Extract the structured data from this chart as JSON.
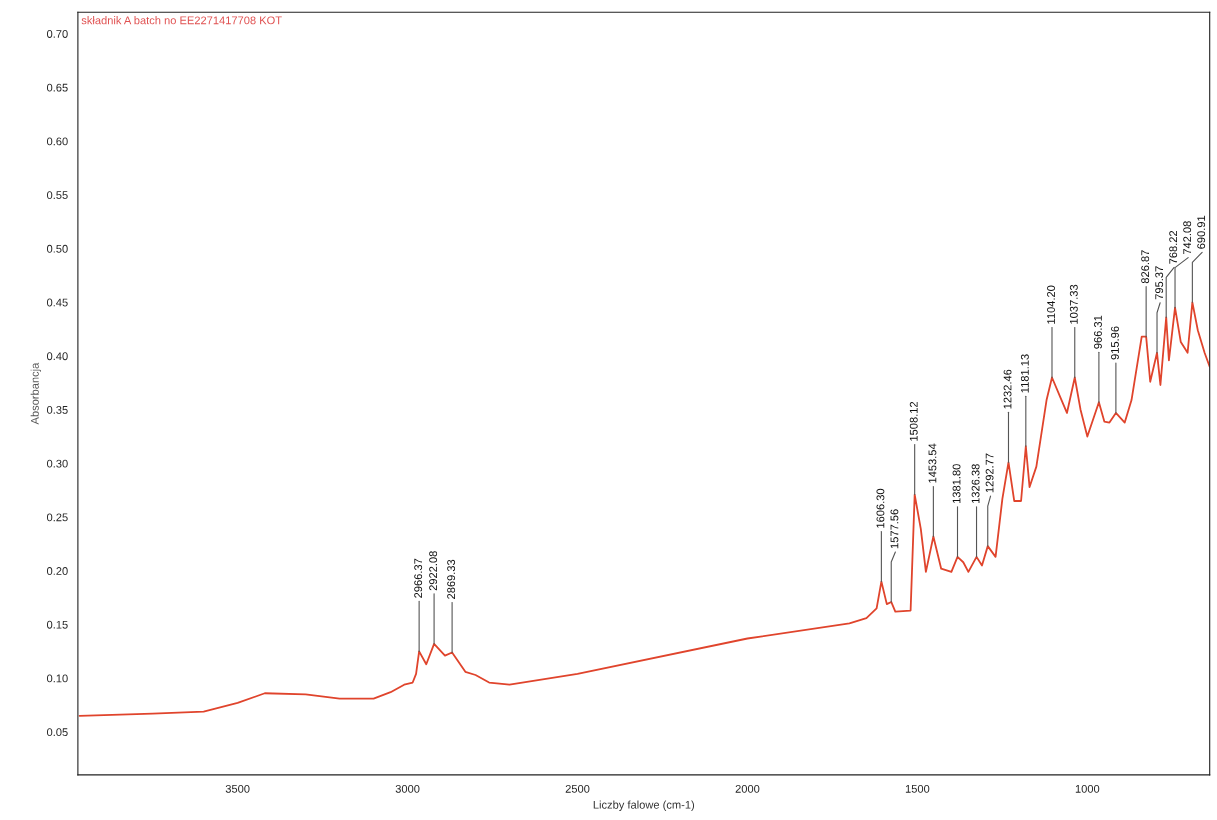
{
  "chart_data": {
    "type": "line",
    "title": "składnik A batch no EE2271417708 KOT",
    "xlabel": "Liczby falowe (cm-1)",
    "ylabel": "Absorbancja",
    "xlim": [
      3970,
      640
    ],
    "ylim": [
      0.01,
      0.72
    ],
    "xticks": [
      3500,
      3000,
      2500,
      2000,
      1500,
      1000
    ],
    "yticks": [
      {
        "value": 0.05,
        "label": "0.05"
      },
      {
        "value": 0.1,
        "label": "0.10"
      },
      {
        "value": 0.15,
        "label": "0.15"
      },
      {
        "value": 0.2,
        "label": "0.20"
      },
      {
        "value": 0.25,
        "label": "0.25"
      },
      {
        "value": 0.3,
        "label": "0.30"
      },
      {
        "value": 0.35,
        "label": "0.35"
      },
      {
        "value": 0.4,
        "label": "0.40"
      },
      {
        "value": 0.45,
        "label": "0.45"
      },
      {
        "value": 0.5,
        "label": "0.50"
      },
      {
        "value": 0.55,
        "label": "0.55"
      },
      {
        "value": 0.6,
        "label": "0.60"
      },
      {
        "value": 0.65,
        "label": "0.65"
      },
      {
        "value": 0.7,
        "label": "0.70"
      }
    ],
    "series": [
      {
        "color": "#e0442c",
        "x": [
          3965,
          3750,
          3600,
          3500,
          3420,
          3300,
          3200,
          3100,
          3050,
          3010,
          2985,
          2975,
          2966,
          2945,
          2922,
          2890,
          2869,
          2830,
          2800,
          2760,
          2700,
          2500,
          2000,
          1700,
          1650,
          1620,
          1606,
          1590,
          1577,
          1565,
          1520,
          1508,
          1490,
          1475,
          1453,
          1430,
          1400,
          1382,
          1365,
          1350,
          1326,
          1310,
          1293,
          1270,
          1250,
          1232,
          1215,
          1195,
          1181,
          1170,
          1150,
          1120,
          1104,
          1080,
          1060,
          1037,
          1020,
          1000,
          966,
          950,
          935,
          916,
          890,
          870,
          840,
          827,
          815,
          795,
          785,
          768,
          760,
          742,
          725,
          705,
          691,
          675,
          655,
          640
        ],
        "values": [
          0.065,
          0.067,
          0.069,
          0.077,
          0.086,
          0.085,
          0.081,
          0.081,
          0.087,
          0.094,
          0.096,
          0.104,
          0.125,
          0.113,
          0.132,
          0.121,
          0.124,
          0.106,
          0.103,
          0.096,
          0.094,
          0.104,
          0.137,
          0.151,
          0.156,
          0.165,
          0.19,
          0.169,
          0.171,
          0.162,
          0.163,
          0.271,
          0.239,
          0.199,
          0.232,
          0.202,
          0.199,
          0.213,
          0.208,
          0.199,
          0.213,
          0.205,
          0.223,
          0.213,
          0.267,
          0.301,
          0.265,
          0.265,
          0.316,
          0.278,
          0.297,
          0.359,
          0.38,
          0.362,
          0.347,
          0.38,
          0.35,
          0.325,
          0.357,
          0.339,
          0.338,
          0.347,
          0.338,
          0.359,
          0.418,
          0.418,
          0.376,
          0.403,
          0.373,
          0.436,
          0.396,
          0.445,
          0.413,
          0.403,
          0.45,
          0.424,
          0.403,
          0.39
        ]
      }
    ],
    "annotations": [
      {
        "text": "2966.37",
        "x": 2966,
        "y": 0.125
      },
      {
        "text": "2922.08",
        "x": 2922,
        "y": 0.132
      },
      {
        "text": "2869.33",
        "x": 2869,
        "y": 0.124
      },
      {
        "text": "1606.30",
        "x": 1606,
        "y": 0.19
      },
      {
        "text": "1577.56",
        "x": 1577,
        "y": 0.171
      },
      {
        "text": "1508.12",
        "x": 1508,
        "y": 0.271
      },
      {
        "text": "1453.54",
        "x": 1453,
        "y": 0.232
      },
      {
        "text": "1381.80",
        "x": 1382,
        "y": 0.213
      },
      {
        "text": "1326.38",
        "x": 1326,
        "y": 0.213
      },
      {
        "text": "1292.77",
        "x": 1293,
        "y": 0.223
      },
      {
        "text": "1232.46",
        "x": 1232,
        "y": 0.301
      },
      {
        "text": "1181.13",
        "x": 1181,
        "y": 0.316
      },
      {
        "text": "1104.20",
        "x": 1104,
        "y": 0.38
      },
      {
        "text": "1037.33",
        "x": 1037,
        "y": 0.38
      },
      {
        "text": "966.31",
        "x": 966,
        "y": 0.357
      },
      {
        "text": "915.96",
        "x": 916,
        "y": 0.347
      },
      {
        "text": "826.87",
        "x": 827,
        "y": 0.418
      },
      {
        "text": "795.37",
        "x": 795,
        "y": 0.403
      },
      {
        "text": "768.22",
        "x": 768,
        "y": 0.436
      },
      {
        "text": "742.08",
        "x": 742,
        "y": 0.445
      },
      {
        "text": "690.91",
        "x": 691,
        "y": 0.45
      }
    ]
  }
}
